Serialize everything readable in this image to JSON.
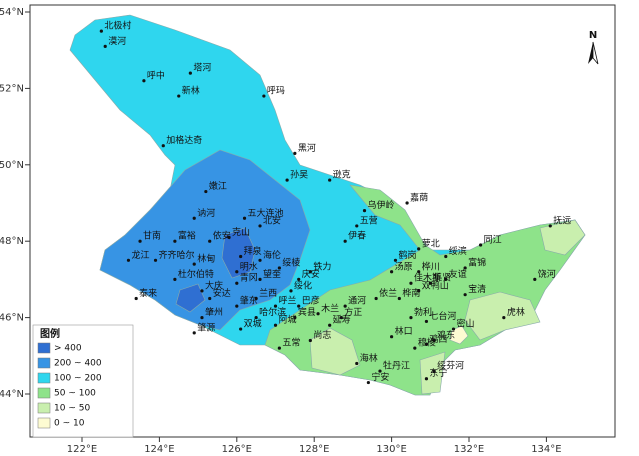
{
  "map": {
    "lon_ticks": [
      {
        "value": 122,
        "label": "122°E"
      },
      {
        "value": 124,
        "label": "124°E"
      },
      {
        "value": 126,
        "label": "126°E"
      },
      {
        "value": 128,
        "label": "128°E"
      },
      {
        "value": 130,
        "label": "130°E"
      },
      {
        "value": 132,
        "label": "132°E"
      },
      {
        "value": 134,
        "label": "134°E"
      }
    ],
    "lat_ticks": [
      {
        "value": 54,
        "label": "54°N"
      },
      {
        "value": 52,
        "label": "52°N"
      },
      {
        "value": 50,
        "label": "50°N"
      },
      {
        "value": 48,
        "label": "48°N"
      },
      {
        "value": 46,
        "label": "46°N"
      },
      {
        "value": 44,
        "label": "44°N"
      }
    ],
    "north_label": "N",
    "legend": {
      "title": "图例",
      "items": [
        {
          "label": "> 400",
          "color": "#2f6fd2"
        },
        {
          "label": "200 ~ 400",
          "color": "#3794e4"
        },
        {
          "label": "100 ~ 200",
          "color": "#2fd6ee"
        },
        {
          "label": "50 ~ 100",
          "color": "#8ee38a"
        },
        {
          "label": "10 ~ 50",
          "color": "#c9efae"
        },
        {
          "label": "0 ~ 10",
          "color": "#fdfbd2"
        }
      ]
    },
    "cities": [
      {
        "name": "北极村",
        "lon": 122.5,
        "lat": 53.5
      },
      {
        "name": "漠河",
        "lon": 122.6,
        "lat": 53.1
      },
      {
        "name": "呼中",
        "lon": 123.6,
        "lat": 52.2
      },
      {
        "name": "塔河",
        "lon": 124.8,
        "lat": 52.4
      },
      {
        "name": "新林",
        "lon": 124.5,
        "lat": 51.8
      },
      {
        "name": "呼玛",
        "lon": 126.7,
        "lat": 51.8
      },
      {
        "name": "加格达奇",
        "lon": 124.1,
        "lat": 50.5
      },
      {
        "name": "黑河",
        "lon": 127.5,
        "lat": 50.3
      },
      {
        "name": "逊克",
        "lon": 128.4,
        "lat": 49.6
      },
      {
        "name": "孙吴",
        "lon": 127.3,
        "lat": 49.6
      },
      {
        "name": "嘉荫",
        "lon": 130.4,
        "lat": 49.0
      },
      {
        "name": "嫩江",
        "lon": 125.2,
        "lat": 49.3
      },
      {
        "name": "讷河",
        "lon": 124.9,
        "lat": 48.6
      },
      {
        "name": "五大连池",
        "lon": 126.2,
        "lat": 48.6
      },
      {
        "name": "北安",
        "lon": 126.6,
        "lat": 48.4
      },
      {
        "name": "克山",
        "lon": 125.8,
        "lat": 48.1
      },
      {
        "name": "依安",
        "lon": 125.3,
        "lat": 48.0
      },
      {
        "name": "富裕",
        "lon": 124.4,
        "lat": 48.0
      },
      {
        "name": "甘南",
        "lon": 123.5,
        "lat": 48.0
      },
      {
        "name": "拜泉",
        "lon": 126.1,
        "lat": 47.6
      },
      {
        "name": "明水",
        "lon": 126.0,
        "lat": 47.2
      },
      {
        "name": "海伦",
        "lon": 126.6,
        "lat": 47.5
      },
      {
        "name": "绥棱",
        "lon": 127.1,
        "lat": 47.3
      },
      {
        "name": "望奎",
        "lon": 126.6,
        "lat": 47.0
      },
      {
        "name": "青冈",
        "lon": 126.0,
        "lat": 46.9
      },
      {
        "name": "兰西",
        "lon": 126.5,
        "lat": 46.5
      },
      {
        "name": "绥化",
        "lon": 127.4,
        "lat": 46.7
      },
      {
        "name": "庆安",
        "lon": 127.6,
        "lat": 47.0
      },
      {
        "name": "铁力",
        "lon": 127.9,
        "lat": 47.2
      },
      {
        "name": "龙江",
        "lon": 123.2,
        "lat": 47.5
      },
      {
        "name": "齐齐哈尔",
        "lon": 123.9,
        "lat": 47.5
      },
      {
        "name": "林甸",
        "lon": 124.9,
        "lat": 47.4
      },
      {
        "name": "杜尔伯特",
        "lon": 124.4,
        "lat": 47.0
      },
      {
        "name": "泰来",
        "lon": 123.4,
        "lat": 46.5
      },
      {
        "name": "大庆",
        "lon": 125.1,
        "lat": 46.7
      },
      {
        "name": "安达",
        "lon": 125.3,
        "lat": 46.5
      },
      {
        "name": "肇州",
        "lon": 125.1,
        "lat": 46.0
      },
      {
        "name": "肇源",
        "lon": 124.9,
        "lat": 45.6
      },
      {
        "name": "肇东",
        "lon": 126.0,
        "lat": 46.3
      },
      {
        "name": "呼兰",
        "lon": 127.0,
        "lat": 46.3
      },
      {
        "name": "哈尔滨",
        "lon": 126.5,
        "lat": 46.0
      },
      {
        "name": "阿城",
        "lon": 127.0,
        "lat": 45.8
      },
      {
        "name": "双城",
        "lon": 126.1,
        "lat": 45.7
      },
      {
        "name": "五常",
        "lon": 127.1,
        "lat": 45.2
      },
      {
        "name": "宾县",
        "lon": 127.5,
        "lat": 46.0
      },
      {
        "name": "巴彦",
        "lon": 127.6,
        "lat": 46.3
      },
      {
        "name": "木兰",
        "lon": 128.1,
        "lat": 46.1
      },
      {
        "name": "方正",
        "lon": 128.7,
        "lat": 46.0
      },
      {
        "name": "通河",
        "lon": 128.8,
        "lat": 46.3
      },
      {
        "name": "延寿",
        "lon": 128.4,
        "lat": 45.8
      },
      {
        "name": "尚志",
        "lon": 127.9,
        "lat": 45.4
      },
      {
        "name": "伊春",
        "lon": 128.8,
        "lat": 48.0
      },
      {
        "name": "五营",
        "lon": 129.1,
        "lat": 48.4
      },
      {
        "name": "乌伊岭",
        "lon": 129.3,
        "lat": 48.8
      },
      {
        "name": "鹤岗",
        "lon": 130.1,
        "lat": 47.5
      },
      {
        "name": "萝北",
        "lon": 130.7,
        "lat": 47.8
      },
      {
        "name": "汤原",
        "lon": 130.0,
        "lat": 47.2
      },
      {
        "name": "佳木斯",
        "lon": 130.5,
        "lat": 46.9
      },
      {
        "name": "桦川",
        "lon": 130.7,
        "lat": 47.2
      },
      {
        "name": "绥滨",
        "lon": 131.4,
        "lat": 47.6
      },
      {
        "name": "富锦",
        "lon": 131.9,
        "lat": 47.3
      },
      {
        "name": "同江",
        "lon": 132.3,
        "lat": 47.9
      },
      {
        "name": "抚远",
        "lon": 134.1,
        "lat": 48.4
      },
      {
        "name": "饶河",
        "lon": 133.7,
        "lat": 47.0
      },
      {
        "name": "宝清",
        "lon": 131.9,
        "lat": 46.6
      },
      {
        "name": "集贤",
        "lon": 131.0,
        "lat": 46.9
      },
      {
        "name": "双鸭山",
        "lon": 130.7,
        "lat": 46.7
      },
      {
        "name": "友谊",
        "lon": 131.4,
        "lat": 47.0
      },
      {
        "name": "依兰",
        "lon": 129.6,
        "lat": 46.5
      },
      {
        "name": "勃利",
        "lon": 130.5,
        "lat": 46.0
      },
      {
        "name": "七台河",
        "lon": 130.9,
        "lat": 45.9
      },
      {
        "name": "桦南",
        "lon": 130.2,
        "lat": 46.5
      },
      {
        "name": "密山",
        "lon": 131.6,
        "lat": 45.7
      },
      {
        "name": "虎林",
        "lon": 132.9,
        "lat": 46.0
      },
      {
        "name": "鸡东",
        "lon": 131.1,
        "lat": 45.4
      },
      {
        "name": "鸡西",
        "lon": 130.9,
        "lat": 45.3
      },
      {
        "name": "林口",
        "lon": 130.0,
        "lat": 45.5
      },
      {
        "name": "穆棱",
        "lon": 130.6,
        "lat": 45.2
      },
      {
        "name": "海林",
        "lon": 129.1,
        "lat": 44.8
      },
      {
        "name": "牡丹江",
        "lon": 129.7,
        "lat": 44.6
      },
      {
        "name": "宁安",
        "lon": 129.4,
        "lat": 44.3
      },
      {
        "name": "东宁",
        "lon": 130.9,
        "lat": 44.4
      },
      {
        "name": "绥芬河",
        "lon": 131.1,
        "lat": 44.6
      }
    ]
  }
}
